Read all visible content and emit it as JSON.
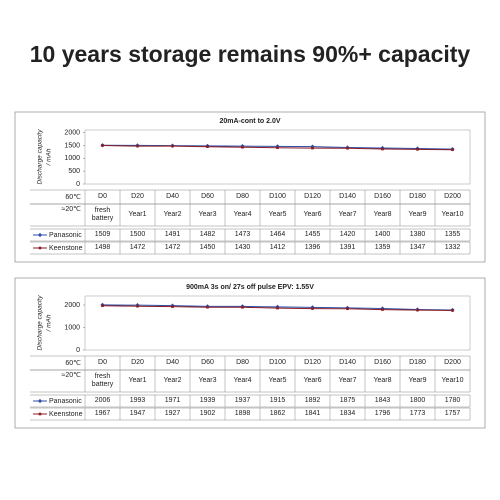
{
  "title": "10 years storage remains 90%+ capacity",
  "chart_data": [
    {
      "type": "line",
      "title": "20mA-cont to 2.0V",
      "y_label": [
        "Discharge capacity",
        "/ mAh"
      ],
      "row_labels": [
        "60℃",
        "≈20℃"
      ],
      "categories": [
        "D0",
        "D20",
        "D40",
        "D60",
        "D80",
        "D100",
        "D120",
        "D140",
        "D160",
        "D180",
        "D200"
      ],
      "periods": [
        "fresh battery",
        "Year1",
        "Year2",
        "Year3",
        "Year4",
        "Year5",
        "Year6",
        "Year7",
        "Year8",
        "Year9",
        "Year10"
      ],
      "series": [
        {
          "name": "Panasonic",
          "color": "#2b4ea8",
          "values": [
            1509,
            1500,
            1491,
            1482,
            1473,
            1464,
            1455,
            1420,
            1400,
            1380,
            1355
          ]
        },
        {
          "name": "Keenstone",
          "color": "#8b1c24",
          "values": [
            1498,
            1472,
            1472,
            1450,
            1430,
            1412,
            1396,
            1391,
            1359,
            1347,
            1332
          ]
        }
      ],
      "ylim": [
        0,
        2100
      ],
      "yticks": [
        0,
        500,
        1000,
        1500,
        2000
      ]
    },
    {
      "type": "line",
      "title": "900mA 3s on/ 27s off pulse EPV: 1.55V",
      "y_label": [
        "Discharge capacity",
        "/ mAh"
      ],
      "row_labels": [
        "60℃",
        "≈20℃"
      ],
      "categories": [
        "D0",
        "D20",
        "D40",
        "D60",
        "D80",
        "D100",
        "D120",
        "D140",
        "D160",
        "D180",
        "D200"
      ],
      "periods": [
        "fresh battery",
        "Year1",
        "Year2",
        "Year3",
        "Year4",
        "Year5",
        "Year6",
        "Year7",
        "Year8",
        "Year9",
        "Year10"
      ],
      "series": [
        {
          "name": "Panasonic",
          "color": "#2b4ea8",
          "values": [
            2006,
            1993,
            1971,
            1939,
            1937,
            1915,
            1892,
            1875,
            1843,
            1800,
            1780
          ]
        },
        {
          "name": "Keenstone",
          "color": "#8b1c24",
          "values": [
            1967,
            1947,
            1927,
            1902,
            1898,
            1862,
            1841,
            1834,
            1796,
            1773,
            1757
          ]
        }
      ],
      "ylim": [
        0,
        2400
      ],
      "yticks": [
        0,
        1000,
        2000
      ]
    }
  ]
}
